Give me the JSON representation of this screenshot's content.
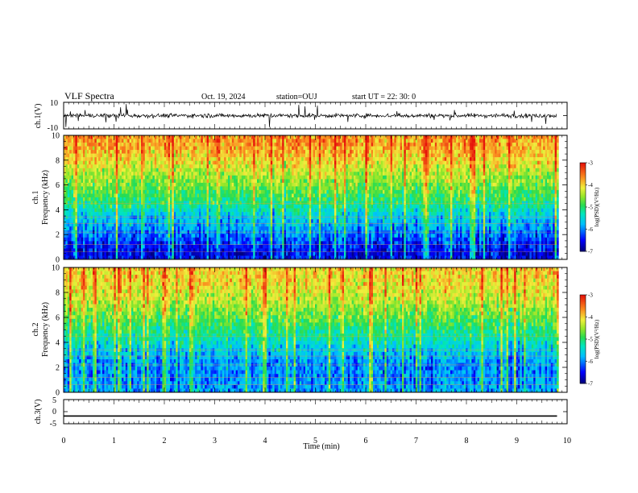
{
  "header": {
    "title": "VLF Spectra",
    "date": "Oct. 19, 2024",
    "station": "station=OUJ",
    "start": "start  UT  =   22: 30: 0"
  },
  "chart_data": [
    {
      "type": "line",
      "panel": "ch1-waveform",
      "ylabel": "ch.1(V)",
      "ylim": [
        -10,
        10
      ],
      "ytick_labels": [
        "10",
        "-10"
      ],
      "description_values": {
        "baseline_V": 0,
        "typical_amplitude_V": 3,
        "spike_peak_V": 9
      }
    },
    {
      "type": "heatmap",
      "panel": "ch1-spectrogram",
      "ylabel": "ch.1\nFrequency (kHz)",
      "ylim": [
        0,
        10
      ],
      "yticks": [
        0,
        2,
        4,
        6,
        8,
        10
      ],
      "xlim": [
        0,
        10
      ],
      "data_end_min": 9.8,
      "colorbar": {
        "label": "log(PSD)(V²/Hz)",
        "range": [
          -7,
          -3
        ],
        "ticks": [
          -3,
          -4,
          -5,
          -6,
          -7
        ]
      },
      "log_psd_profile": [
        {
          "freq_khz": 0.5,
          "value": -6.6
        },
        {
          "freq_khz": 1.5,
          "value": -6.3
        },
        {
          "freq_khz": 2.5,
          "value": -5.9
        },
        {
          "freq_khz": 3.5,
          "value": -5.6
        },
        {
          "freq_khz": 4.5,
          "value": -5.1
        },
        {
          "freq_khz": 5.5,
          "value": -4.8
        },
        {
          "freq_khz": 6.5,
          "value": -4.5
        },
        {
          "freq_khz": 7.5,
          "value": -4.2
        },
        {
          "freq_khz": 8.5,
          "value": -3.9
        },
        {
          "freq_khz": 9.5,
          "value": -3.7
        }
      ]
    },
    {
      "type": "heatmap",
      "panel": "ch2-spectrogram",
      "ylabel": "ch.2\nFrequency (kHz)",
      "ylim": [
        0,
        10
      ],
      "yticks": [
        0,
        2,
        4,
        6,
        8,
        10
      ],
      "xlim": [
        0,
        10
      ],
      "data_end_min": 9.8,
      "colorbar": {
        "label": "log(PSD)(V²/Hz)",
        "range": [
          -7,
          -3
        ],
        "ticks": [
          -3,
          -4,
          -5,
          -6,
          -7
        ]
      },
      "log_psd_profile": [
        {
          "freq_khz": 0.5,
          "value": -5.9
        },
        {
          "freq_khz": 1.5,
          "value": -6.0
        },
        {
          "freq_khz": 2.5,
          "value": -5.9
        },
        {
          "freq_khz": 3.5,
          "value": -5.6
        },
        {
          "freq_khz": 4.5,
          "value": -5.2
        },
        {
          "freq_khz": 5.5,
          "value": -4.9
        },
        {
          "freq_khz": 6.5,
          "value": -4.6
        },
        {
          "freq_khz": 7.5,
          "value": -4.3
        },
        {
          "freq_khz": 8.5,
          "value": -4.1
        },
        {
          "freq_khz": 9.5,
          "value": -4.0
        }
      ]
    },
    {
      "type": "line",
      "panel": "ch3-waveform",
      "ylabel": "ch.3(V)",
      "ylim": [
        -5,
        5
      ],
      "ytick_labels": [
        "5",
        "0",
        "-5"
      ],
      "x": [
        0,
        9.8
      ],
      "y": [
        -1.8,
        -1.8
      ]
    }
  ],
  "xaxis": {
    "label": "Time (min)",
    "range": [
      0,
      10
    ],
    "tick_labels": [
      "0",
      "1",
      "2",
      "3",
      "4",
      "5",
      "6",
      "7",
      "8",
      "9",
      "10"
    ]
  }
}
